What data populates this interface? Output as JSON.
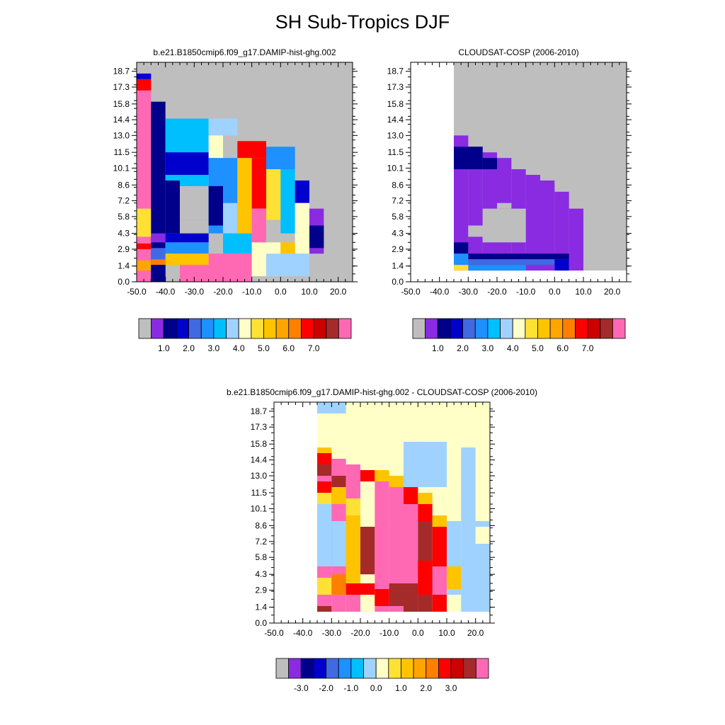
{
  "title": "SH Sub-Tropics DJF",
  "chart_data": [
    {
      "type": "heatmap",
      "title": "b.e21.B1850cmip6.f09_g17.DAMIP-hist-ghg.002",
      "xlim": [
        -50.0,
        25.0
      ],
      "ylim": [
        0.0,
        19.5
      ],
      "xticks": [
        "-50.0",
        "-40.0",
        "-30.0",
        "-20.0",
        "-10.0",
        "0.0",
        "10.0",
        "20.0"
      ],
      "xtick_values": [
        -50,
        -40,
        -30,
        -20,
        -10,
        0,
        10,
        20
      ],
      "yticks": [
        "0.0",
        "1.4",
        "2.9",
        "4.3",
        "5.8",
        "7.2",
        "8.6",
        "10.1",
        "11.5",
        "13.0",
        "14.4",
        "15.8",
        "17.3",
        "18.7"
      ],
      "ytick_values": [
        0.0,
        1.4,
        2.9,
        4.3,
        5.8,
        7.2,
        8.6,
        10.1,
        11.5,
        13.0,
        14.4,
        15.8,
        17.3,
        18.7
      ],
      "background_color": "#bebebe",
      "colorbar": {
        "colors": [
          "#bebebe",
          "#8a2be2",
          "#00008b",
          "#0000cd",
          "#4169e1",
          "#1e90ff",
          "#00bfff",
          "#a0d2ff",
          "#ffffc8",
          "#ffe135",
          "#ffc400",
          "#ffa500",
          "#ff7f00",
          "#ff0000",
          "#cd0000",
          "#a52a2a",
          "#ff69b4"
        ],
        "labels": [
          "1.0",
          "2.0",
          "3.0",
          "4.0",
          "5.0",
          "6.0",
          "7.0"
        ]
      },
      "cells": [
        {
          "x0": -50,
          "x1": -45,
          "y0": 0.0,
          "y1": 18.0,
          "c": "#ff69b4"
        },
        {
          "x0": -50,
          "x1": -45,
          "y0": 18.0,
          "y1": 18.5,
          "c": "#0000cd"
        },
        {
          "x0": -50,
          "x1": -45,
          "y0": 17.0,
          "y1": 18.0,
          "c": "#ff0000"
        },
        {
          "x0": -50,
          "x1": -45,
          "y0": 4.0,
          "y1": 6.5,
          "c": "#ffe135"
        },
        {
          "x0": -50,
          "x1": -45,
          "y0": 2.9,
          "y1": 3.4,
          "c": "#ff0000"
        },
        {
          "x0": -50,
          "x1": -45,
          "y0": 1.0,
          "y1": 1.9,
          "c": "#ffa500"
        },
        {
          "x0": -45,
          "x1": -40,
          "y0": 0.0,
          "y1": 16.0,
          "c": "#00008b"
        },
        {
          "x0": -45,
          "x1": -40,
          "y0": 3.5,
          "y1": 4.3,
          "c": "#8a2be2"
        },
        {
          "x0": -45,
          "x1": -40,
          "y0": 2.0,
          "y1": 3.0,
          "c": "#4169e1"
        },
        {
          "x0": -45,
          "x1": -40,
          "y0": 1.5,
          "y1": 2.0,
          "c": "#ff7f00"
        },
        {
          "x0": -45,
          "x1": -40,
          "y0": 0.0,
          "y1": 1.5,
          "c": "#00008b"
        },
        {
          "x0": -40,
          "x1": -25,
          "y0": 5.5,
          "y1": 14.5,
          "c": "#00bfff"
        },
        {
          "x0": -40,
          "x1": -25,
          "y0": 9.5,
          "y1": 11.5,
          "c": "#0000cd"
        },
        {
          "x0": -35,
          "x1": -25,
          "y0": 5.5,
          "y1": 8.5,
          "c": "#bebebe"
        },
        {
          "x0": -40,
          "x1": -35,
          "y0": 4.3,
          "y1": 9.0,
          "c": "#00008b"
        },
        {
          "x0": -40,
          "x1": -25,
          "y0": 3.5,
          "y1": 4.3,
          "c": "#0000cd"
        },
        {
          "x0": -40,
          "x1": -25,
          "y0": 2.5,
          "y1": 3.5,
          "c": "#1e90ff"
        },
        {
          "x0": -40,
          "x1": -25,
          "y0": 1.5,
          "y1": 2.5,
          "c": "#ffc400"
        },
        {
          "x0": -35,
          "x1": -20,
          "y0": 0.0,
          "y1": 1.5,
          "c": "#ff69b4"
        },
        {
          "x0": -25,
          "x1": -15,
          "y0": 13.0,
          "y1": 14.5,
          "c": "#a0d2ff"
        },
        {
          "x0": -25,
          "x1": -20,
          "y0": 11.0,
          "y1": 13.0,
          "c": "#ffffc8"
        },
        {
          "x0": -25,
          "x1": -15,
          "y0": 4.3,
          "y1": 11.0,
          "c": "#1e90ff"
        },
        {
          "x0": -25,
          "x1": -20,
          "y0": 5.0,
          "y1": 8.5,
          "c": "#00008b"
        },
        {
          "x0": -20,
          "x1": -15,
          "y0": 4.3,
          "y1": 7.0,
          "c": "#a0d2ff"
        },
        {
          "x0": -20,
          "x1": -10,
          "y0": 2.5,
          "y1": 4.3,
          "c": "#00bfff"
        },
        {
          "x0": -25,
          "x1": -10,
          "y0": 0.0,
          "y1": 2.5,
          "c": "#ff69b4"
        },
        {
          "x0": -15,
          "x1": -5,
          "y0": 11.0,
          "y1": 12.5,
          "c": "#ff0000"
        },
        {
          "x0": -15,
          "x1": -10,
          "y0": 4.3,
          "y1": 11.0,
          "c": "#ffc400"
        },
        {
          "x0": -10,
          "x1": -5,
          "y0": 6.5,
          "y1": 11.0,
          "c": "#ff0000"
        },
        {
          "x0": -10,
          "x1": -5,
          "y0": 3.5,
          "y1": 6.5,
          "c": "#ff69b4"
        },
        {
          "x0": -10,
          "x1": 0,
          "y0": 0.5,
          "y1": 3.5,
          "c": "#ffffc8"
        },
        {
          "x0": -5,
          "x1": 0,
          "y0": 5.5,
          "y1": 11.0,
          "c": "#ffe135"
        },
        {
          "x0": -5,
          "x1": 5,
          "y0": 10.0,
          "y1": 12.0,
          "c": "#1e90ff"
        },
        {
          "x0": 0,
          "x1": 5,
          "y0": 4.3,
          "y1": 10.0,
          "c": "#00bfff"
        },
        {
          "x0": 5,
          "x1": 10,
          "y0": 7.0,
          "y1": 9.0,
          "c": "#0000cd"
        },
        {
          "x0": 5,
          "x1": 10,
          "y0": 2.5,
          "y1": 7.0,
          "c": "#ffffc8"
        },
        {
          "x0": 0,
          "x1": 5,
          "y0": 2.5,
          "y1": 3.5,
          "c": "#ffc400"
        },
        {
          "x0": -5,
          "x1": 10,
          "y0": 0.5,
          "y1": 2.5,
          "c": "#a0d2ff"
        },
        {
          "x0": 10,
          "x1": 15,
          "y0": 2.5,
          "y1": 6.5,
          "c": "#8a2be2"
        },
        {
          "x0": 10,
          "x1": 15,
          "y0": 3.0,
          "y1": 5.0,
          "c": "#00008b"
        }
      ]
    },
    {
      "type": "heatmap",
      "title": "CLOUDSAT-COSP (2006-2010)",
      "xlim": [
        -50.0,
        25.0
      ],
      "ylim": [
        0.0,
        19.5
      ],
      "xticks": [
        "-50.0",
        "-40.0",
        "-30.0",
        "-20.0",
        "-10.0",
        "0.0",
        "10.0",
        "20.0"
      ],
      "xtick_values": [
        -50,
        -40,
        -30,
        -20,
        -10,
        0,
        10,
        20
      ],
      "yticks": [
        "0.0",
        "1.4",
        "2.9",
        "4.3",
        "5.8",
        "7.2",
        "8.6",
        "10.1",
        "11.5",
        "13.0",
        "14.4",
        "15.8",
        "17.3",
        "18.7"
      ],
      "ytick_values": [
        0.0,
        1.4,
        2.9,
        4.3,
        5.8,
        7.2,
        8.6,
        10.1,
        11.5,
        13.0,
        14.4,
        15.8,
        17.3,
        18.7
      ],
      "background_color": "#bebebe",
      "colorbar": {
        "colors": [
          "#bebebe",
          "#8a2be2",
          "#00008b",
          "#0000cd",
          "#4169e1",
          "#1e90ff",
          "#00bfff",
          "#a0d2ff",
          "#ffffc8",
          "#ffe135",
          "#ffc400",
          "#ffa500",
          "#ff7f00",
          "#ff0000",
          "#cd0000",
          "#a52a2a",
          "#ff69b4"
        ],
        "labels": [
          "1.0",
          "2.0",
          "3.0",
          "4.0",
          "5.0",
          "6.0",
          "7.0"
        ]
      },
      "cells": [
        {
          "x0": -50,
          "x1": -35,
          "y0": 0.0,
          "y1": 19.5,
          "c": "#ffffff"
        },
        {
          "x0": -35,
          "x1": 25,
          "y0": 0.0,
          "y1": 1.0,
          "c": "#ffffff"
        },
        {
          "x0": -35,
          "x1": -30,
          "y0": 1.0,
          "y1": 13.0,
          "c": "#8a2be2"
        },
        {
          "x0": -30,
          "x1": -25,
          "y0": 1.0,
          "y1": 12.0,
          "c": "#8a2be2"
        },
        {
          "x0": -25,
          "x1": -20,
          "y0": 1.0,
          "y1": 11.5,
          "c": "#8a2be2"
        },
        {
          "x0": -20,
          "x1": -15,
          "y0": 1.0,
          "y1": 11.0,
          "c": "#8a2be2"
        },
        {
          "x0": -15,
          "x1": -10,
          "y0": 1.0,
          "y1": 10.0,
          "c": "#8a2be2"
        },
        {
          "x0": -10,
          "x1": -5,
          "y0": 1.0,
          "y1": 9.5,
          "c": "#8a2be2"
        },
        {
          "x0": -5,
          "x1": 0,
          "y0": 1.0,
          "y1": 9.0,
          "c": "#8a2be2"
        },
        {
          "x0": 0,
          "x1": 5,
          "y0": 1.0,
          "y1": 8.0,
          "c": "#8a2be2"
        },
        {
          "x0": 5,
          "x1": 10,
          "y0": 1.0,
          "y1": 6.5,
          "c": "#8a2be2"
        },
        {
          "x0": -35,
          "x1": -25,
          "y0": 10.0,
          "y1": 12.0,
          "c": "#00008b"
        },
        {
          "x0": -25,
          "x1": -20,
          "y0": 10.0,
          "y1": 11.0,
          "c": "#00008b"
        },
        {
          "x0": -30,
          "x1": -15,
          "y0": 4.0,
          "y1": 5.0,
          "c": "#bebebe"
        },
        {
          "x0": -25,
          "x1": -10,
          "y0": 3.5,
          "y1": 6.5,
          "c": "#bebebe"
        },
        {
          "x0": -20,
          "x1": -15,
          "y0": 6.5,
          "y1": 7.0,
          "c": "#bebebe"
        },
        {
          "x0": -35,
          "x1": -30,
          "y0": 2.5,
          "y1": 3.5,
          "c": "#00008b"
        },
        {
          "x0": -30,
          "x1": 5,
          "y0": 2.0,
          "y1": 2.5,
          "c": "#00008b"
        },
        {
          "x0": -35,
          "x1": -30,
          "y0": 1.5,
          "y1": 2.5,
          "c": "#1e90ff"
        },
        {
          "x0": -30,
          "x1": 0,
          "y0": 1.5,
          "y1": 2.0,
          "c": "#4169e1"
        },
        {
          "x0": -30,
          "x1": -10,
          "y0": 1.0,
          "y1": 1.5,
          "c": "#1e90ff"
        },
        {
          "x0": 0,
          "x1": 5,
          "y0": 1.0,
          "y1": 2.0,
          "c": "#0000cd"
        },
        {
          "x0": -35,
          "x1": -30,
          "y0": 1.0,
          "y1": 1.5,
          "c": "#ffe135"
        }
      ]
    },
    {
      "type": "heatmap",
      "title": "b.e21.B1850cmip6.f09_g17.DAMIP-hist-ghg.002 - CLOUDSAT-COSP (2006-2010)",
      "xlim": [
        -50.0,
        25.0
      ],
      "ylim": [
        0.0,
        19.5
      ],
      "xticks": [
        "-50.0",
        "-40.0",
        "-30.0",
        "-20.0",
        "-10.0",
        "0.0",
        "10.0",
        "20.0"
      ],
      "xtick_values": [
        -50,
        -40,
        -30,
        -20,
        -10,
        0,
        10,
        20
      ],
      "yticks": [
        "0.0",
        "1.4",
        "2.9",
        "4.3",
        "5.8",
        "7.2",
        "8.6",
        "10.1",
        "11.5",
        "13.0",
        "14.4",
        "15.8",
        "17.3",
        "18.7"
      ],
      "ytick_values": [
        0.0,
        1.4,
        2.9,
        4.3,
        5.8,
        7.2,
        8.6,
        10.1,
        11.5,
        13.0,
        14.4,
        15.8,
        17.3,
        18.7
      ],
      "background_color": "#ffffc8",
      "colorbar": {
        "colors": [
          "#bebebe",
          "#8a2be2",
          "#00008b",
          "#0000cd",
          "#4169e1",
          "#1e90ff",
          "#00bfff",
          "#a0d2ff",
          "#ffffc8",
          "#ffe135",
          "#ffc400",
          "#ffa500",
          "#ff7f00",
          "#ff0000",
          "#cd0000",
          "#a52a2a",
          "#ff69b4"
        ],
        "labels": [
          "-3.0",
          "-2.0",
          "-1.0",
          "0.0",
          "1.0",
          "2.0",
          "3.0"
        ]
      },
      "cells": [
        {
          "x0": -50,
          "x1": -35,
          "y0": 0.0,
          "y1": 19.5,
          "c": "#ffffff"
        },
        {
          "x0": -35,
          "x1": 25,
          "y0": 0.0,
          "y1": 1.0,
          "c": "#ffffff"
        },
        {
          "x0": -35,
          "x1": -25,
          "y0": 18.5,
          "y1": 19.5,
          "c": "#a0d2ff"
        },
        {
          "x0": -35,
          "x1": -30,
          "y0": 1.0,
          "y1": 15.0,
          "c": "#ff69b4"
        },
        {
          "x0": -35,
          "x1": -30,
          "y0": 5.0,
          "y1": 10.5,
          "c": "#a0d2ff"
        },
        {
          "x0": -35,
          "x1": -30,
          "y0": 10.5,
          "y1": 11.5,
          "c": "#ffe135"
        },
        {
          "x0": -35,
          "x1": -30,
          "y0": 11.5,
          "y1": 12.5,
          "c": "#ff0000"
        },
        {
          "x0": -35,
          "x1": -30,
          "y0": 13.0,
          "y1": 14.0,
          "c": "#a52a2a"
        },
        {
          "x0": -35,
          "x1": -30,
          "y0": 14.0,
          "y1": 15.0,
          "c": "#ff0000"
        },
        {
          "x0": -35,
          "x1": -30,
          "y0": 15.0,
          "y1": 15.5,
          "c": "#ffc400"
        },
        {
          "x0": -35,
          "x1": -30,
          "y0": 2.5,
          "y1": 4.0,
          "c": "#ffe135"
        },
        {
          "x0": -35,
          "x1": -30,
          "y0": 1.0,
          "y1": 1.5,
          "c": "#a52a2a"
        },
        {
          "x0": -30,
          "x1": -25,
          "y0": 1.0,
          "y1": 14.5,
          "c": "#ff69b4"
        },
        {
          "x0": -30,
          "x1": -25,
          "y0": 5.0,
          "y1": 9.0,
          "c": "#a0d2ff"
        },
        {
          "x0": -30,
          "x1": -25,
          "y0": 10.5,
          "y1": 12.0,
          "c": "#ffc400"
        },
        {
          "x0": -30,
          "x1": -25,
          "y0": 12.0,
          "y1": 13.0,
          "c": "#a52a2a"
        },
        {
          "x0": -30,
          "x1": -25,
          "y0": 2.5,
          "y1": 4.3,
          "c": "#ff7f00"
        },
        {
          "x0": -25,
          "x1": -20,
          "y0": 1.0,
          "y1": 14.0,
          "c": "#ff69b4"
        },
        {
          "x0": -25,
          "x1": -20,
          "y0": 3.0,
          "y1": 9.5,
          "c": "#ffc400"
        },
        {
          "x0": -25,
          "x1": -20,
          "y0": 9.5,
          "y1": 11.0,
          "c": "#ffe135"
        },
        {
          "x0": -25,
          "x1": -15,
          "y0": 2.5,
          "y1": 3.5,
          "c": "#ff0000"
        },
        {
          "x0": -20,
          "x1": -15,
          "y0": 4.3,
          "y1": 8.5,
          "c": "#a52a2a"
        },
        {
          "x0": -20,
          "x1": -15,
          "y0": 12.5,
          "y1": 13.5,
          "c": "#ff0000"
        },
        {
          "x0": -15,
          "x1": -10,
          "y0": 1.0,
          "y1": 13.0,
          "c": "#ff69b4"
        },
        {
          "x0": -15,
          "x1": -10,
          "y0": 12.5,
          "y1": 13.5,
          "c": "#ffc400"
        },
        {
          "x0": -15,
          "x1": -10,
          "y0": 1.5,
          "y1": 3.0,
          "c": "#ff0000"
        },
        {
          "x0": -10,
          "x1": -5,
          "y0": 1.0,
          "y1": 12.0,
          "c": "#ff69b4"
        },
        {
          "x0": -10,
          "x1": -5,
          "y0": 12.0,
          "y1": 13.0,
          "c": "#ffc400"
        },
        {
          "x0": -10,
          "x1": -5,
          "y0": 1.5,
          "y1": 3.5,
          "c": "#a52a2a"
        },
        {
          "x0": -5,
          "x1": 0,
          "y0": 1.0,
          "y1": 11.0,
          "c": "#ff69b4"
        },
        {
          "x0": -5,
          "x1": 0,
          "y0": 10.5,
          "y1": 12.0,
          "c": "#ff0000"
        },
        {
          "x0": -5,
          "x1": 0,
          "y0": 1.0,
          "y1": 3.5,
          "c": "#a52a2a"
        },
        {
          "x0": 0,
          "x1": 5,
          "y0": 1.0,
          "y1": 9.0,
          "c": "#a52a2a"
        },
        {
          "x0": 0,
          "x1": 5,
          "y0": 9.0,
          "y1": 10.5,
          "c": "#ff0000"
        },
        {
          "x0": 0,
          "x1": 5,
          "y0": 10.5,
          "y1": 11.5,
          "c": "#ffc400"
        },
        {
          "x0": 0,
          "x1": 5,
          "y0": 2.5,
          "y1": 5.5,
          "c": "#ff0000"
        },
        {
          "x0": 5,
          "x1": 10,
          "y0": 1.0,
          "y1": 9.0,
          "c": "#ff0000"
        },
        {
          "x0": 5,
          "x1": 10,
          "y0": 2.5,
          "y1": 5.0,
          "c": "#ff69b4"
        },
        {
          "x0": 5,
          "x1": 10,
          "y0": 8.5,
          "y1": 9.5,
          "c": "#ffc400"
        },
        {
          "x0": 10,
          "x1": 15,
          "y0": 1.0,
          "y1": 9.0,
          "c": "#a0d2ff"
        },
        {
          "x0": 10,
          "x1": 15,
          "y0": 3.0,
          "y1": 5.0,
          "c": "#ffc400"
        },
        {
          "x0": 10,
          "x1": 15,
          "y0": 1.0,
          "y1": 2.5,
          "c": "#ffffc8"
        },
        {
          "x0": 15,
          "x1": 25,
          "y0": 1.0,
          "y1": 15.5,
          "c": "#a0d2ff"
        },
        {
          "x0": 20,
          "x1": 25,
          "y0": 7.0,
          "y1": 8.5,
          "c": "#ffffc8"
        },
        {
          "x0": 20,
          "x1": 25,
          "y0": 9.0,
          "y1": 19.5,
          "c": "#ffffc8"
        },
        {
          "x0": 10,
          "x1": 20,
          "y0": 15.5,
          "y1": 19.5,
          "c": "#ffffc8"
        },
        {
          "x0": -5,
          "x1": 10,
          "y0": 12.0,
          "y1": 16.0,
          "c": "#a0d2ff"
        }
      ]
    }
  ]
}
